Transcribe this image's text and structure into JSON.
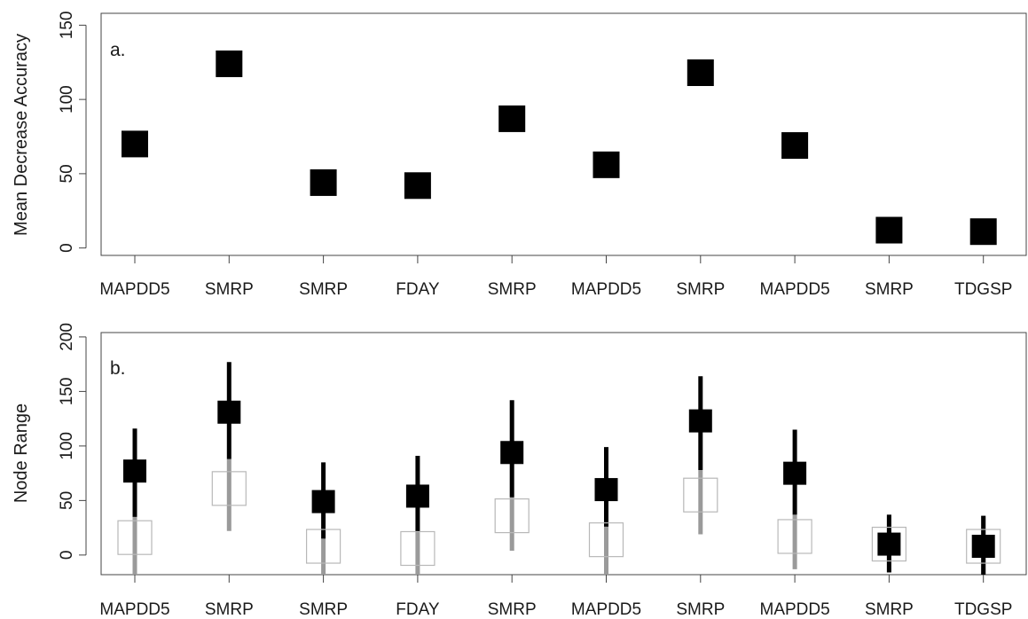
{
  "chart_data": [
    {
      "type": "scatter",
      "panel_label": "a.",
      "ylabel": "Mean Decrease Accuracy",
      "xlabel": "",
      "ylim": [
        -5,
        158
      ],
      "yticks": [
        0,
        50,
        100,
        150
      ],
      "categories": [
        "MAPDD5",
        "SMRP",
        "SMRP",
        "FDAY",
        "SMRP",
        "MAPDD5",
        "SMRP",
        "MAPDD5",
        "SMRP",
        "TDGSP"
      ],
      "values": [
        70,
        124,
        44,
        42,
        87,
        56,
        118,
        69,
        12,
        11
      ],
      "marker_color": "#000000",
      "grid": false
    },
    {
      "type": "scatter",
      "panel_label": "b.",
      "ylabel": "Node Range",
      "xlabel": "",
      "ylim": [
        -18,
        204
      ],
      "yticks": [
        0,
        50,
        100,
        150,
        200
      ],
      "categories": [
        "MAPDD5",
        "SMRP",
        "SMRP",
        "FDAY",
        "SMRP",
        "MAPDD5",
        "SMRP",
        "MAPDD5",
        "SMRP",
        "TDGSP"
      ],
      "series": [
        {
          "color": "#000000",
          "filled": true,
          "values": [
            77,
            131,
            49,
            54,
            94,
            60,
            123,
            75,
            10,
            8
          ],
          "range_low": [
            35,
            88,
            15,
            21,
            53,
            26,
            78,
            37,
            -16,
            -18
          ],
          "range_high": [
            116,
            177,
            85,
            91,
            142,
            99,
            164,
            115,
            37,
            36
          ]
        },
        {
          "color": "#9a9a9a",
          "filled": false,
          "values": [
            16,
            61,
            8,
            6,
            36,
            14,
            55,
            17,
            10,
            8
          ],
          "range_low": [
            -18,
            22,
            -18,
            -18,
            4,
            -18,
            19,
            -13,
            -16,
            -18
          ],
          "range_high": [
            35,
            88,
            15,
            21,
            53,
            26,
            78,
            37,
            37,
            36
          ]
        }
      ],
      "grid": false
    }
  ]
}
